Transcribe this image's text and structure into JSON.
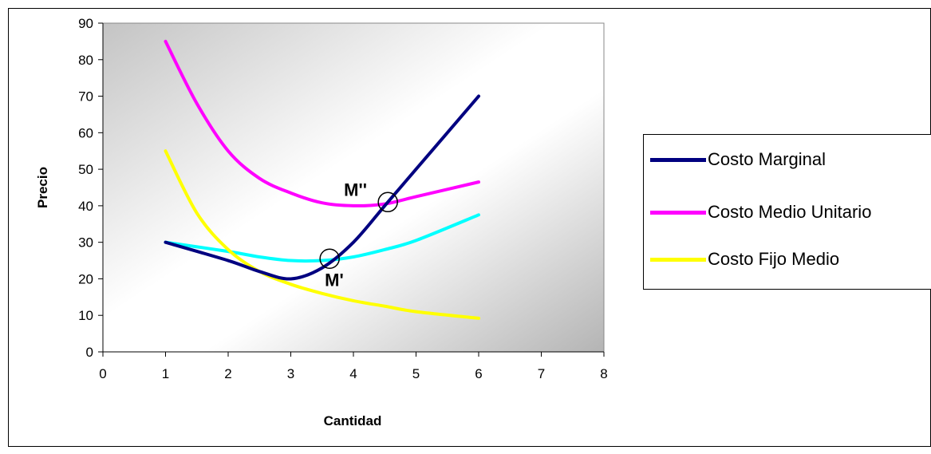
{
  "chart_data": {
    "type": "line",
    "xlabel": "Cantidad",
    "ylabel": "Precio",
    "xlim": [
      0,
      8
    ],
    "ylim": [
      0,
      90
    ],
    "xticks": [
      "0",
      "1",
      "2",
      "3",
      "4",
      "5",
      "6",
      "7",
      "8"
    ],
    "yticks": [
      "0",
      "10",
      "20",
      "30",
      "40",
      "50",
      "60",
      "70",
      "80",
      "90"
    ],
    "grid": false,
    "plot_background": "diagonal gradient gray to white",
    "legend_position": "right",
    "series": [
      {
        "name": "Costo Marginal",
        "color": "#000080",
        "points": [
          [
            1,
            30
          ],
          [
            2,
            25
          ],
          [
            2.5,
            22
          ],
          [
            3,
            20
          ],
          [
            3.5,
            23
          ],
          [
            4,
            30
          ],
          [
            4.5,
            40
          ],
          [
            5,
            50
          ],
          [
            6,
            70
          ]
        ]
      },
      {
        "name": "Costo Medio Unitario",
        "color": "#FF00FF",
        "points": [
          [
            1,
            85
          ],
          [
            1.5,
            68
          ],
          [
            2,
            55
          ],
          [
            2.5,
            47.5
          ],
          [
            3,
            43.5
          ],
          [
            3.5,
            40.8
          ],
          [
            4,
            40
          ],
          [
            4.5,
            40.5
          ],
          [
            5,
            42.5
          ],
          [
            6,
            46.5
          ]
        ]
      },
      {
        "name": "Costo Fijo Medio",
        "color": "#FFFF00",
        "points": [
          [
            1,
            55
          ],
          [
            1.5,
            38
          ],
          [
            2,
            28
          ],
          [
            2.5,
            22
          ],
          [
            3,
            18.5
          ],
          [
            3.5,
            16
          ],
          [
            4,
            14
          ],
          [
            4.5,
            12.5
          ],
          [
            5,
            11
          ],
          [
            6,
            9.2
          ]
        ]
      },
      {
        "color": "#00FFFF",
        "points": [
          [
            1,
            30
          ],
          [
            2,
            27.5
          ],
          [
            2.5,
            26
          ],
          [
            3,
            25
          ],
          [
            3.5,
            25
          ],
          [
            4,
            26
          ],
          [
            4.5,
            28
          ],
          [
            5,
            30.5
          ],
          [
            6,
            37.5
          ]
        ]
      }
    ],
    "annotations": [
      {
        "label": "M''",
        "x": 4.55,
        "y": 41
      },
      {
        "label": "M'",
        "x": 3.62,
        "y": 25.5
      }
    ]
  }
}
